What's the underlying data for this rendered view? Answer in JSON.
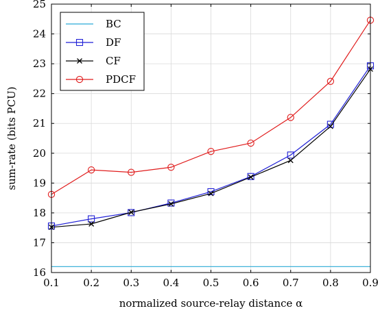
{
  "chart_data": {
    "type": "line",
    "xlabel": "normalized source-relay distance α",
    "ylabel": "sum-rate (bits PCU)",
    "xlim": [
      0.1,
      0.9
    ],
    "ylim": [
      16,
      25
    ],
    "xticks": [
      "0.1",
      "0.2",
      "0.3",
      "0.4",
      "0.5",
      "0.6",
      "0.7",
      "0.8",
      "0.9"
    ],
    "yticks": [
      "16",
      "17",
      "18",
      "19",
      "20",
      "21",
      "22",
      "23",
      "24",
      "25"
    ],
    "grid": true,
    "legend_position": "top-left",
    "x": [
      0.1,
      0.2,
      0.3,
      0.4,
      0.5,
      0.6,
      0.7,
      0.8,
      0.9
    ],
    "series": [
      {
        "name": "BC",
        "color": "#29a9d6",
        "marker": "none",
        "values": [
          16.2,
          16.2,
          16.2,
          16.2,
          16.2,
          16.2,
          16.2,
          16.2,
          16.2
        ]
      },
      {
        "name": "DF",
        "color": "#1f1fd6",
        "marker": "square",
        "values": [
          17.56,
          17.8,
          18.01,
          18.33,
          18.71,
          19.22,
          19.94,
          20.97,
          22.93
        ]
      },
      {
        "name": "CF",
        "color": "#000000",
        "marker": "cross",
        "values": [
          17.52,
          17.63,
          18.02,
          18.3,
          18.65,
          19.2,
          19.76,
          20.9,
          22.82
        ]
      },
      {
        "name": "PDCF",
        "color": "#e01b1b",
        "marker": "circle",
        "values": [
          18.62,
          19.44,
          19.36,
          19.53,
          20.06,
          20.34,
          21.2,
          22.41,
          24.46
        ]
      }
    ]
  }
}
